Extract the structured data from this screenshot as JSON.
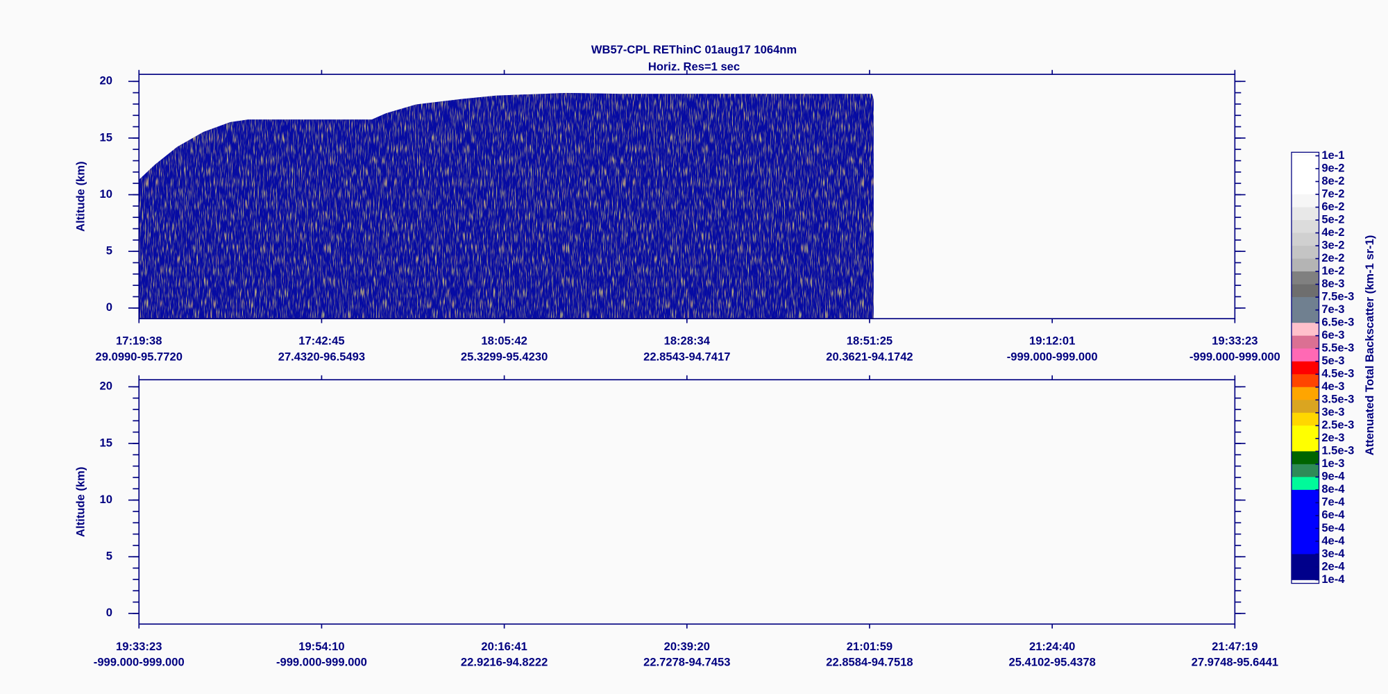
{
  "chart_data": [
    {
      "type": "curtain",
      "title": "WB57-CPL  REThinC  01aug17  1064nm",
      "subtitle": "Horiz. Res=1 sec",
      "y_label": "Altitude (km)",
      "ylim": [
        -0.94,
        20.62
      ],
      "yticks": [
        0,
        5,
        10,
        15,
        20
      ],
      "yminor": 1,
      "categories": [
        "17:19:38",
        "17:42:45",
        "18:05:42",
        "18:28:34",
        "18:51:25",
        "19:12:01",
        "19:33:23"
      ],
      "sublabels": [
        "29.0990-95.7720",
        "27.4320-96.5493",
        "25.3299-95.4230",
        "22.8543-94.7417",
        "20.3621-94.1742",
        "-999.000-999.000",
        "-999.000-999.000"
      ]
    },
    {
      "type": "curtain",
      "y_label": "Altitude (km)",
      "ylim": [
        -0.94,
        20.62
      ],
      "yticks": [
        0,
        5,
        10,
        15,
        20
      ],
      "yminor": 1,
      "categories": [
        "19:33:23",
        "19:54:10",
        "20:16:41",
        "20:39:20",
        "21:01:59",
        "21:24:40",
        "21:47:19"
      ],
      "sublabels": [
        "-999.000-999.000",
        "-999.000-999.000",
        "22.9216-94.8222",
        "22.7278-94.7453",
        "22.8584-94.7518",
        "25.4102-95.4378",
        "27.9748-95.6441"
      ]
    },
    {
      "type": "colorbar",
      "label": "Attenuated Total Backscatter (km-1 sr-1)",
      "levels": [
        {
          "value": 0.1,
          "label": "1e-1"
        },
        {
          "value": 0.09,
          "label": "9e-2"
        },
        {
          "value": 0.08,
          "label": "8e-2"
        },
        {
          "value": 0.07,
          "label": "7e-2"
        },
        {
          "value": 0.06,
          "label": "6e-2"
        },
        {
          "value": 0.05,
          "label": "5e-2"
        },
        {
          "value": 0.04,
          "label": "4e-2"
        },
        {
          "value": 0.03,
          "label": "3e-2"
        },
        {
          "value": 0.02,
          "label": "2e-2"
        },
        {
          "value": 0.01,
          "label": "1e-2"
        },
        {
          "value": 0.008,
          "label": "8e-3"
        },
        {
          "value": 0.0075,
          "label": "7.5e-3"
        },
        {
          "value": 0.007,
          "label": "7e-3"
        },
        {
          "value": 0.0065,
          "label": "6.5e-3"
        },
        {
          "value": 0.006,
          "label": "6e-3"
        },
        {
          "value": 0.0055,
          "label": "5.5e-3"
        },
        {
          "value": 0.005,
          "label": "5e-3"
        },
        {
          "value": 0.0045,
          "label": "4.5e-3"
        },
        {
          "value": 0.004,
          "label": "4e-3"
        },
        {
          "value": 0.0035,
          "label": "3.5e-3"
        },
        {
          "value": 0.003,
          "label": "3e-3"
        },
        {
          "value": 0.0025,
          "label": "2.5e-3"
        },
        {
          "value": 0.002,
          "label": "2e-3"
        },
        {
          "value": 0.0015,
          "label": "1.5e-3"
        },
        {
          "value": 0.001,
          "label": "1e-3"
        },
        {
          "value": 0.0009,
          "label": "9e-4"
        },
        {
          "value": 0.0008,
          "label": "8e-4"
        },
        {
          "value": 0.0007,
          "label": "7e-4"
        },
        {
          "value": 0.0006,
          "label": "6e-4"
        },
        {
          "value": 0.0005,
          "label": "5e-4"
        },
        {
          "value": 0.0004,
          "label": "4e-4"
        },
        {
          "value": 0.0003,
          "label": "3e-4"
        },
        {
          "value": 0.0002,
          "label": "2e-4"
        },
        {
          "value": 0.0001,
          "label": "1e-4"
        }
      ],
      "colors": [
        "#ffffff",
        "#ffffff",
        "#ffffff",
        "#f6f6f6",
        "#e8e8e8",
        "#dcdcdc",
        "#d0d0d0",
        "#c4c4c4",
        "#b4b4b4",
        "#808080",
        "#6e6e6e",
        "#708090",
        "#708090",
        "#ffc0cb",
        "#db7093",
        "#ff69b4",
        "#ff0000",
        "#ff4500",
        "#ffa500",
        "#daa520",
        "#ffd700",
        "#ffff00",
        "#ffff00",
        "#006400",
        "#2e8b57",
        "#00fa9a",
        "#0000ff",
        "#0000ff",
        "#0000ff",
        "#0000ff",
        "#0000ff",
        "#00008b",
        "#00008b"
      ]
    }
  ]
}
